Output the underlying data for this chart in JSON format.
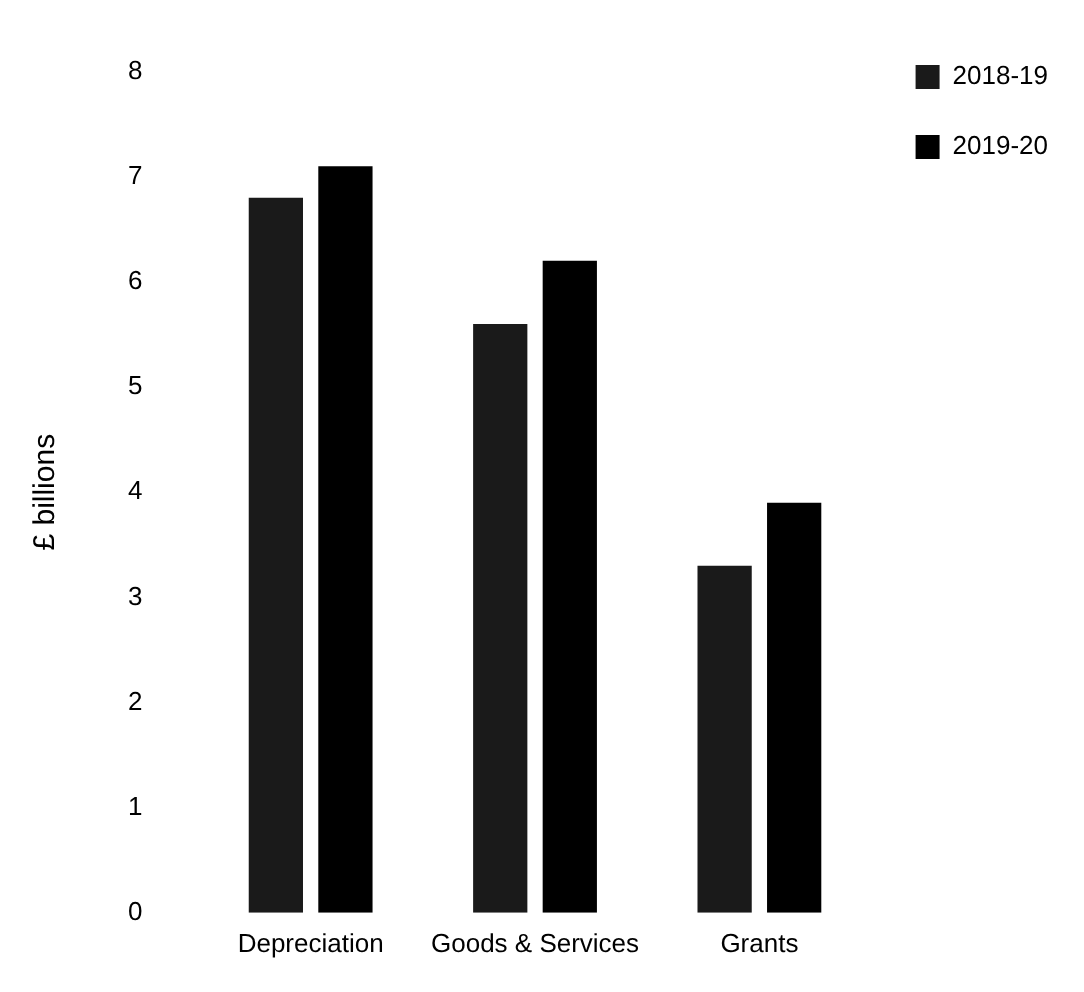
{
  "chart_data": {
    "type": "bar",
    "ylabel": "£ billions",
    "categories": [
      "Depreciation",
      "Goods & Services",
      "Grants"
    ],
    "series": [
      {
        "name": "2018-19",
        "color": "#1a1a1a",
        "values": [
          6.8,
          5.6,
          3.3
        ]
      },
      {
        "name": "2019-20",
        "color": "#000000",
        "values": [
          7.1,
          6.2,
          3.9
        ]
      }
    ],
    "ylim": [
      0,
      8
    ],
    "yticks": [
      0,
      1,
      2,
      3,
      4,
      5,
      6,
      7,
      8
    ],
    "grid": false,
    "legend": "top right"
  }
}
